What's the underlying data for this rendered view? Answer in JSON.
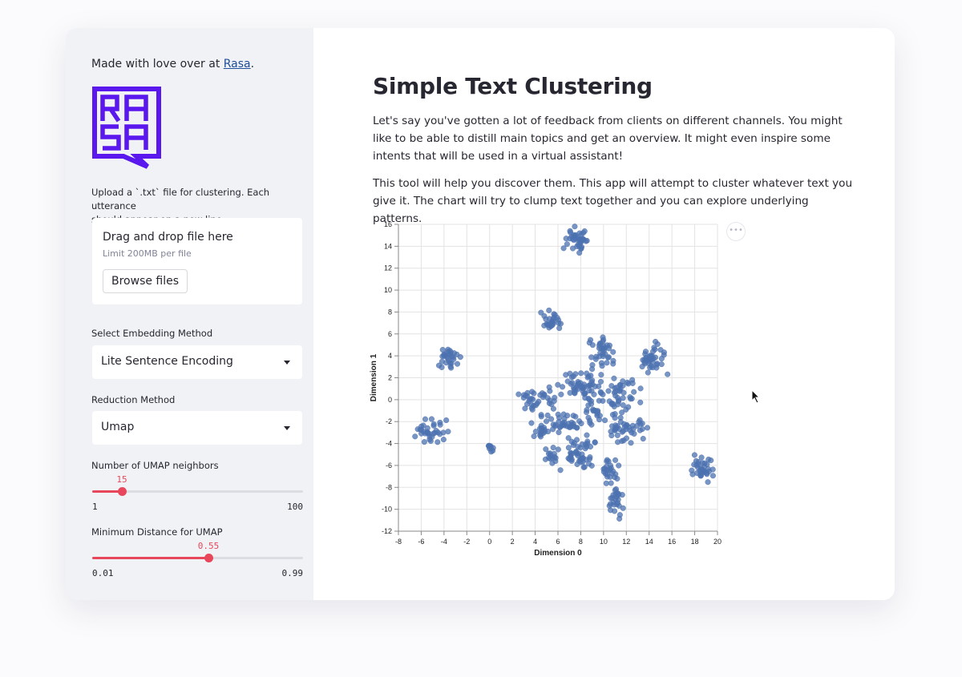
{
  "sidebar": {
    "made_prefix": "Made with love over at ",
    "made_link": "Rasa",
    "made_suffix": ".",
    "logo_icon": "rasa-logo-icon",
    "upload_label_line1": "Upload a `.txt` file for clustering. Each utterance",
    "upload_label_line2": "should appear on a new line.",
    "dropzone_title": "Drag and drop file here",
    "dropzone_limit": "Limit 200MB per file",
    "browse_button": "Browse files",
    "embedding_label": "Select Embedding Method",
    "embedding_value": "Lite Sentence Encoding",
    "reduction_label": "Reduction Method",
    "reduction_value": "Umap",
    "neighbors_label": "Number of UMAP neighbors",
    "neighbors_value": "15",
    "neighbors_min": "1",
    "neighbors_max": "100",
    "mindist_label": "Minimum Distance for UMAP",
    "mindist_value": "0.55",
    "mindist_min": "0.01",
    "mindist_max": "0.99"
  },
  "main": {
    "title": "Simple Text Clustering",
    "para1": "Let's say you've gotten a lot of feedback from clients on different channels. You might like to be able to distill main topics and get an overview. It might even inspire some intents that will be used in a virtual assistant!",
    "para2": "This tool will help you discover them. This app will attempt to cluster whatever text you give it. The chart will try to clump text together and you can explore underlying patterns.",
    "menu_icon": "more-horizontal-icon"
  },
  "colors": {
    "accent": "#e8475b",
    "point": "#4c72b0",
    "link": "#1c4e9a",
    "logo": "#5a17ee"
  },
  "chart_data": {
    "type": "scatter",
    "xlabel": "Dimension 0",
    "ylabel": "Dimension 1",
    "xlim": [
      -8,
      20
    ],
    "ylim": [
      -12,
      16
    ],
    "x_ticks": [
      -8,
      -6,
      -4,
      -2,
      0,
      2,
      4,
      6,
      8,
      10,
      12,
      14,
      16,
      18,
      20
    ],
    "y_ticks": [
      -12,
      -10,
      -8,
      -6,
      -4,
      -2,
      0,
      2,
      4,
      6,
      8,
      10,
      12,
      14,
      16
    ],
    "grid": true,
    "clusters": [
      {
        "cx": 7.5,
        "cy": 14.8,
        "sx": 0.5,
        "sy": 0.5,
        "n": 40
      },
      {
        "cx": 5.5,
        "cy": 7.2,
        "sx": 0.45,
        "sy": 0.4,
        "n": 30
      },
      {
        "cx": -3.6,
        "cy": 3.7,
        "sx": 0.4,
        "sy": 0.45,
        "n": 30
      },
      {
        "cx": -5.2,
        "cy": -2.8,
        "sx": 0.8,
        "sy": 0.55,
        "n": 35
      },
      {
        "cx": 0.2,
        "cy": -4.4,
        "sx": 0.2,
        "sy": 0.2,
        "n": 10
      },
      {
        "cx": 14.4,
        "cy": 3.5,
        "sx": 0.5,
        "sy": 0.7,
        "n": 40
      },
      {
        "cx": 18.6,
        "cy": -6.4,
        "sx": 0.4,
        "sy": 0.7,
        "n": 35
      },
      {
        "cx": 9.7,
        "cy": 4.8,
        "sx": 0.55,
        "sy": 0.8,
        "n": 35
      },
      {
        "cx": 8.2,
        "cy": 1.2,
        "sx": 0.9,
        "sy": 0.8,
        "n": 60
      },
      {
        "cx": 11.6,
        "cy": 0.3,
        "sx": 0.7,
        "sy": 0.9,
        "n": 45
      },
      {
        "cx": 4.2,
        "cy": 0.0,
        "sx": 0.9,
        "sy": 0.5,
        "n": 35
      },
      {
        "cx": 6.0,
        "cy": -2.0,
        "sx": 1.1,
        "sy": 0.5,
        "n": 40
      },
      {
        "cx": 4.6,
        "cy": -2.9,
        "sx": 0.3,
        "sy": 0.3,
        "n": 15
      },
      {
        "cx": 7.7,
        "cy": -4.8,
        "sx": 0.8,
        "sy": 0.8,
        "n": 50
      },
      {
        "cx": 5.3,
        "cy": -5.2,
        "sx": 0.35,
        "sy": 0.35,
        "n": 15
      },
      {
        "cx": 12.0,
        "cy": -2.8,
        "sx": 0.8,
        "sy": 0.5,
        "n": 40
      },
      {
        "cx": 10.5,
        "cy": -6.5,
        "sx": 0.4,
        "sy": 0.6,
        "n": 25
      },
      {
        "cx": 11.0,
        "cy": -9.3,
        "sx": 0.35,
        "sy": 0.6,
        "n": 25
      },
      {
        "cx": 9.0,
        "cy": -1.3,
        "sx": 0.6,
        "sy": 0.5,
        "n": 20
      }
    ]
  }
}
